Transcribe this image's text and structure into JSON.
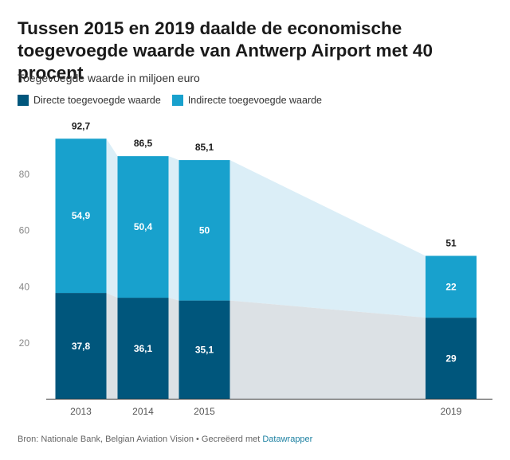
{
  "chart_data": {
    "type": "bar",
    "title": "Tussen 2015 en 2019 daalde de economische toegevoegde waarde van Antwerp Airport met 40 procent",
    "subtitle": "Toegevoegde waarde in miljoen euro",
    "categories": [
      "2013",
      "2014",
      "2015",
      "2019"
    ],
    "series": [
      {
        "name": "Directe toegevoegde waarde",
        "values": [
          37.8,
          36.1,
          35.1,
          29
        ],
        "labels": [
          "37,8",
          "36,1",
          "35,1",
          "29"
        ]
      },
      {
        "name": "Indirecte toegevoegde waarde",
        "values": [
          54.9,
          50.4,
          50,
          22
        ],
        "labels": [
          "54,9",
          "50,4",
          "50",
          "22"
        ]
      }
    ],
    "totals": [
      "92,7",
      "86,5",
      "85,1",
      "51"
    ],
    "total_values": [
      92.7,
      86.5,
      85.1,
      51
    ],
    "stacked": true,
    "ylim": [
      0,
      100
    ],
    "yticks": [
      20,
      40,
      60,
      80
    ],
    "grid": false,
    "legend_position": "top-left",
    "colors": {
      "direct": "#00567c",
      "indirect": "#18a1cd",
      "band_direct": "#dce1e5",
      "band_indirect": "#dbeef7"
    }
  },
  "footer": {
    "source": "Bron: Nationale Bank, Belgian Aviation Vision • Gecreëerd met ",
    "link": "Datawrapper"
  }
}
